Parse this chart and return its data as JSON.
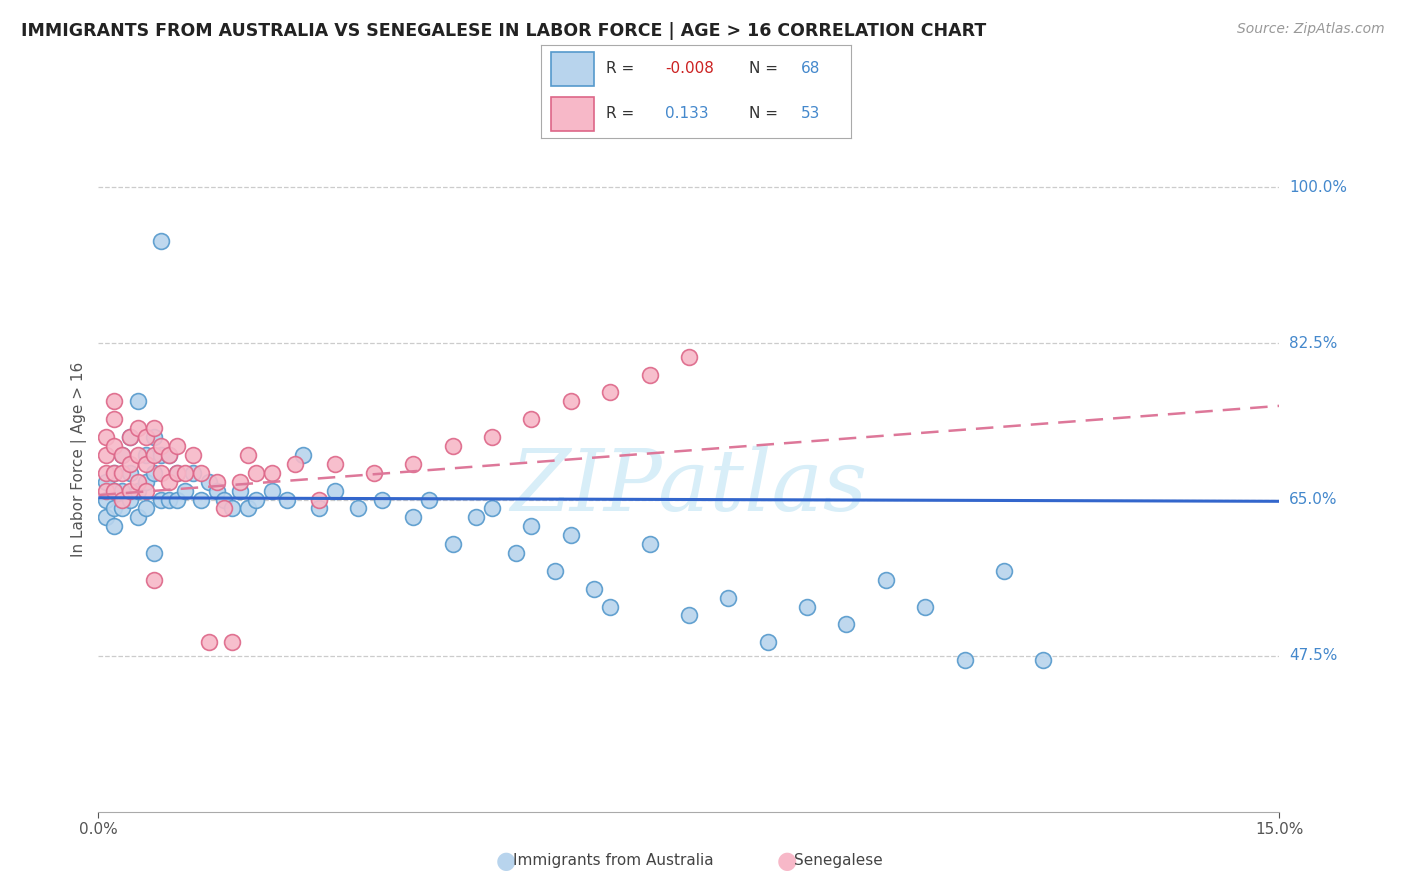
{
  "title": "IMMIGRANTS FROM AUSTRALIA VS SENEGALESE IN LABOR FORCE | AGE > 16 CORRELATION CHART",
  "source": "Source: ZipAtlas.com",
  "ylabel": "In Labor Force | Age > 16",
  "yticks": [
    0.475,
    0.65,
    0.825,
    1.0
  ],
  "ytick_labels": [
    "47.5%",
    "65.0%",
    "82.5%",
    "100.0%"
  ],
  "xtick_left": "0.0%",
  "xtick_right": "15.0%",
  "xmin": 0.0,
  "xmax": 0.15,
  "ymin": 0.3,
  "ymax": 1.09,
  "color_australia_fill": "#b8d4ed",
  "color_australia_edge": "#5599cc",
  "color_senegalese_fill": "#f7b8c8",
  "color_senegalese_edge": "#dd6688",
  "line_australia": "#3366cc",
  "line_senegalese": "#dd7799",
  "watermark": "ZIPatlas",
  "watermark_color": "#d8eef8",
  "background": "#ffffff",
  "grid_color": "#cccccc",
  "aus_line_y0": 0.652,
  "aus_line_y1": 0.648,
  "sen_line_y0": 0.655,
  "sen_line_y1": 0.755,
  "scatter_australia_x": [
    0.001,
    0.001,
    0.001,
    0.002,
    0.002,
    0.002,
    0.002,
    0.003,
    0.003,
    0.003,
    0.004,
    0.004,
    0.004,
    0.005,
    0.005,
    0.005,
    0.006,
    0.006,
    0.006,
    0.007,
    0.007,
    0.007,
    0.008,
    0.008,
    0.009,
    0.009,
    0.01,
    0.01,
    0.011,
    0.012,
    0.013,
    0.014,
    0.015,
    0.016,
    0.017,
    0.018,
    0.019,
    0.02,
    0.022,
    0.024,
    0.026,
    0.028,
    0.03,
    0.033,
    0.036,
    0.04,
    0.042,
    0.045,
    0.048,
    0.05,
    0.053,
    0.055,
    0.058,
    0.06,
    0.063,
    0.065,
    0.07,
    0.075,
    0.08,
    0.085,
    0.09,
    0.095,
    0.1,
    0.105,
    0.11,
    0.115,
    0.12,
    0.008
  ],
  "scatter_australia_y": [
    0.67,
    0.65,
    0.63,
    0.68,
    0.66,
    0.64,
    0.62,
    0.7,
    0.66,
    0.64,
    0.72,
    0.68,
    0.65,
    0.76,
    0.66,
    0.63,
    0.7,
    0.67,
    0.64,
    0.72,
    0.68,
    0.59,
    0.7,
    0.65,
    0.7,
    0.65,
    0.68,
    0.65,
    0.66,
    0.68,
    0.65,
    0.67,
    0.66,
    0.65,
    0.64,
    0.66,
    0.64,
    0.65,
    0.66,
    0.65,
    0.7,
    0.64,
    0.66,
    0.64,
    0.65,
    0.63,
    0.65,
    0.6,
    0.63,
    0.64,
    0.59,
    0.62,
    0.57,
    0.61,
    0.55,
    0.53,
    0.6,
    0.52,
    0.54,
    0.49,
    0.53,
    0.51,
    0.56,
    0.53,
    0.47,
    0.57,
    0.47,
    0.94
  ],
  "scatter_senegalese_x": [
    0.001,
    0.001,
    0.001,
    0.001,
    0.002,
    0.002,
    0.002,
    0.002,
    0.003,
    0.003,
    0.003,
    0.004,
    0.004,
    0.004,
    0.005,
    0.005,
    0.005,
    0.006,
    0.006,
    0.006,
    0.007,
    0.007,
    0.007,
    0.008,
    0.008,
    0.009,
    0.009,
    0.01,
    0.01,
    0.011,
    0.012,
    0.013,
    0.014,
    0.015,
    0.016,
    0.017,
    0.018,
    0.019,
    0.02,
    0.022,
    0.025,
    0.028,
    0.03,
    0.035,
    0.04,
    0.045,
    0.05,
    0.055,
    0.06,
    0.065,
    0.07,
    0.075,
    0.002
  ],
  "scatter_senegalese_y": [
    0.72,
    0.7,
    0.68,
    0.66,
    0.74,
    0.71,
    0.68,
    0.66,
    0.7,
    0.68,
    0.65,
    0.72,
    0.69,
    0.66,
    0.73,
    0.7,
    0.67,
    0.72,
    0.69,
    0.66,
    0.73,
    0.7,
    0.56,
    0.71,
    0.68,
    0.7,
    0.67,
    0.71,
    0.68,
    0.68,
    0.7,
    0.68,
    0.49,
    0.67,
    0.64,
    0.49,
    0.67,
    0.7,
    0.68,
    0.68,
    0.69,
    0.65,
    0.69,
    0.68,
    0.69,
    0.71,
    0.72,
    0.74,
    0.76,
    0.77,
    0.79,
    0.81,
    0.76
  ],
  "legend_r1_color": "#cc2222",
  "legend_r2_color": "#4488cc",
  "legend_n_color": "#4488cc"
}
